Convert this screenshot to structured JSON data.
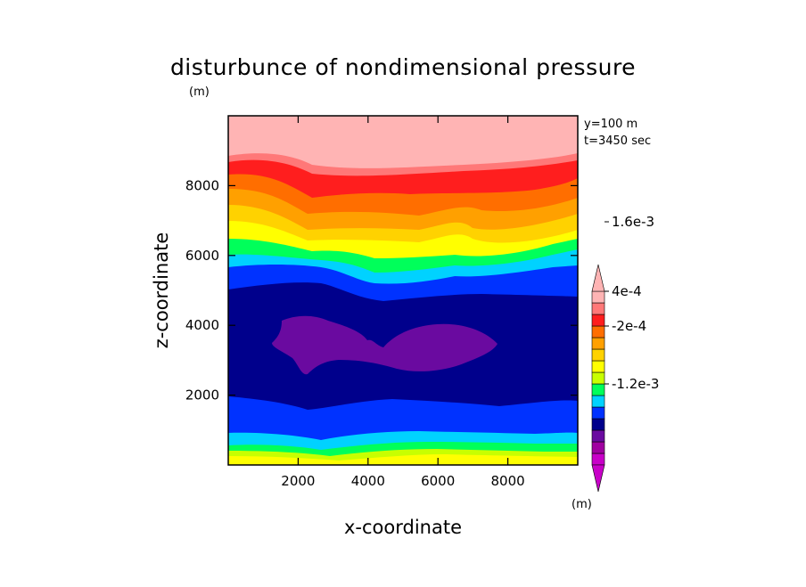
{
  "chart_data": {
    "type": "heatmap",
    "title": "disturbunce of nondimensional pressure",
    "units_label_left": "(m)",
    "units_label_colorbar": "(m)",
    "xlabel": "x-coordinate",
    "ylabel": "z-coordinate",
    "annotation": [
      "y=100 m",
      "t=3450 sec"
    ],
    "xlim": [
      0,
      10000
    ],
    "ylim": [
      0,
      10000
    ],
    "x_ticks": [
      2000,
      4000,
      6000,
      8000
    ],
    "y_ticks": [
      2000,
      4000,
      6000,
      8000
    ],
    "colorbar": {
      "colors": [
        "#c800c8",
        "#a000a0",
        "#6a0aa0",
        "#00008c",
        "#0032ff",
        "#00d2ff",
        "#00ff5a",
        "#c8ff00",
        "#ffff00",
        "#ffd200",
        "#ffa000",
        "#ff6e00",
        "#ff1e1e",
        "#ff7878",
        "#ffb4b4"
      ],
      "tick_labels": [
        "1.6e-3",
        "4e-4",
        "-2e-4",
        "-1.2e-3"
      ],
      "tick_levels": [
        0.0016,
        0.0004,
        -0.0002,
        -0.0012
      ]
    },
    "contour_bands_z": [
      {
        "level_color": "#ffb4b4",
        "z_range_approx": [
          8600,
          10000
        ]
      },
      {
        "level_color": "#ff7878",
        "z_range_approx": [
          8400,
          8900
        ]
      },
      {
        "level_color": "#ff1e1e",
        "z_range_approx": [
          7900,
          8600
        ]
      },
      {
        "level_color": "#ff6e00",
        "z_range_approx": [
          7500,
          8100
        ]
      },
      {
        "level_color": "#ffa000",
        "z_range_approx": [
          7000,
          7700
        ]
      },
      {
        "level_color": "#ffd200",
        "z_range_approx": [
          6600,
          7200
        ]
      },
      {
        "level_color": "#ffff00",
        "z_range_approx": [
          6200,
          6800
        ]
      },
      {
        "level_color": "#00ff5a",
        "z_range_approx": [
          5800,
          6400
        ]
      },
      {
        "level_color": "#00d2ff",
        "z_range_approx": [
          5300,
          6000
        ]
      },
      {
        "level_color": "#0032ff",
        "z_range_approx": [
          4800,
          5600
        ]
      },
      {
        "level_color": "#00008c",
        "z_range_approx": [
          1600,
          5000
        ]
      },
      {
        "level_color": "#6a0aa0",
        "z_range_approx": [
          2700,
          4300
        ]
      },
      {
        "level_color": "#0032ff",
        "z_range_approx": [
          900,
          1900
        ]
      },
      {
        "level_color": "#00d2ff",
        "z_range_approx": [
          600,
          1100
        ]
      },
      {
        "level_color": "#00ff5a",
        "z_range_approx": [
          400,
          800
        ]
      },
      {
        "level_color": "#c8ff00",
        "z_range_approx": [
          250,
          550
        ]
      },
      {
        "level_color": "#ffff00",
        "z_range_approx": [
          0,
          350
        ]
      }
    ]
  }
}
